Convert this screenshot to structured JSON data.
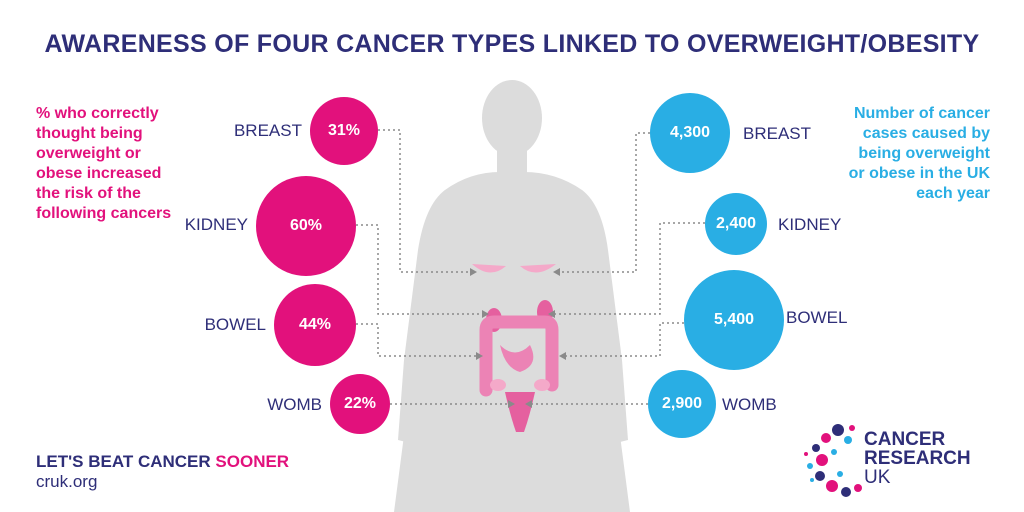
{
  "title": "AWARENESS OF FOUR CANCER TYPES LINKED TO OVERWEIGHT/OBESITY",
  "left_description": "% who correctly thought being overweight or obese increased the risk of the following cancers",
  "right_description": "Number of cancer cases caused by being overweight or obese in the UK each year",
  "awareness": [
    {
      "cancer": "BREAST",
      "value": "31%"
    },
    {
      "cancer": "KIDNEY",
      "value": "60%"
    },
    {
      "cancer": "BOWEL",
      "value": "44%"
    },
    {
      "cancer": "WOMB",
      "value": "22%"
    }
  ],
  "cases": [
    {
      "cancer": "BREAST",
      "value": "4,300"
    },
    {
      "cancer": "KIDNEY",
      "value": "2,400"
    },
    {
      "cancer": "BOWEL",
      "value": "5,400"
    },
    {
      "cancer": "WOMB",
      "value": "2,900"
    }
  ],
  "footer": {
    "slogan_main": "LET'S BEAT CANCER ",
    "slogan_highlight": "SOONER",
    "url": "cruk.org"
  },
  "logo": {
    "line1": "CANCER",
    "line2": "RESEARCH",
    "line3": "UK"
  },
  "colors": {
    "pink": "#e2117c",
    "blue": "#29aee4",
    "navy": "#2e2e78",
    "silhouette": "#d9d9d9"
  }
}
